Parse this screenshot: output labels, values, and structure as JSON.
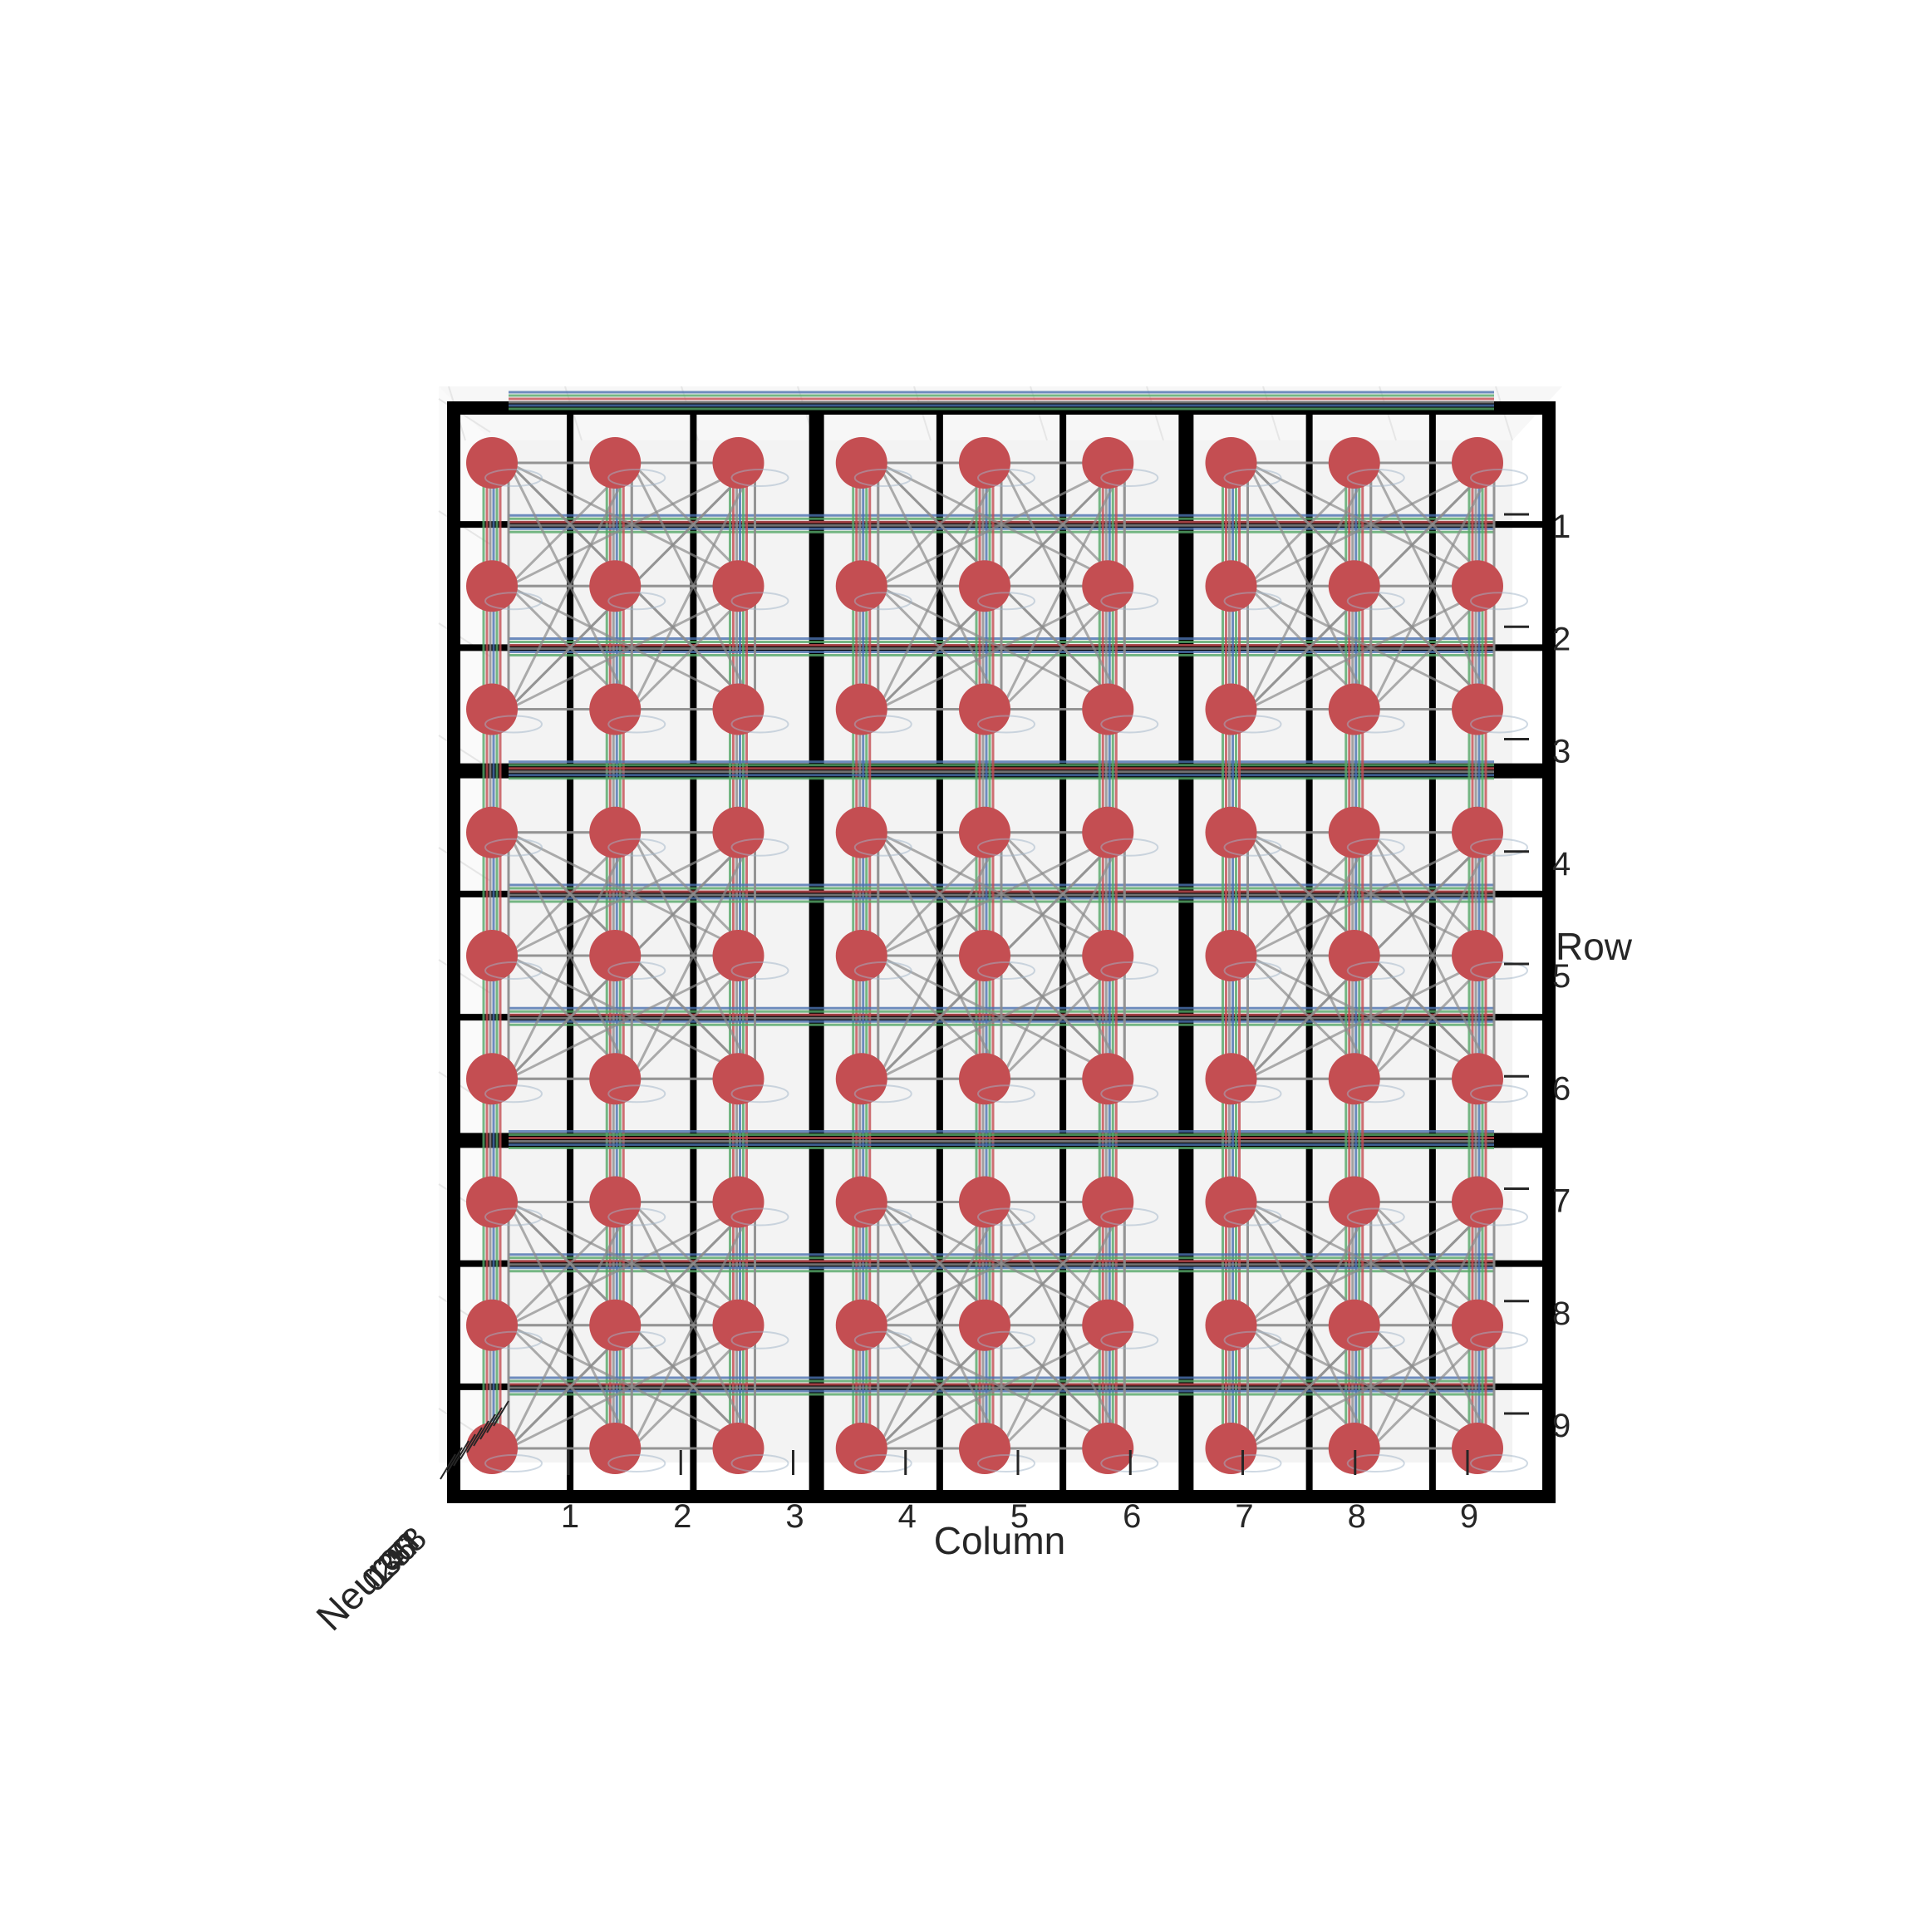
{
  "chart_data": {
    "type": "scatter",
    "projection": "3d",
    "view": "top-down",
    "columns": [
      1,
      2,
      3,
      4,
      5,
      6,
      7,
      8,
      9
    ],
    "rows": [
      1,
      2,
      3,
      4,
      5,
      6,
      7,
      8,
      9
    ],
    "x_ticks": [
      "1",
      "2",
      "3",
      "4",
      "5",
      "6",
      "7",
      "8",
      "9"
    ],
    "y_ticks": [
      "1",
      "2",
      "3",
      "4",
      "5",
      "6",
      "7",
      "8",
      "9"
    ],
    "z_tick_labels": [
      "0",
      "1",
      "2",
      "3",
      "4",
      "5",
      "6",
      "7",
      "8"
    ],
    "xlabel": "Column",
    "ylabel": "Row",
    "zlabel": "Neuron",
    "grid": true,
    "colors": {
      "node": "#c44e52",
      "pane": "#f5f5f5",
      "edge": "#8c8c8c",
      "blue": "#4c72b0",
      "green": "#55a868",
      "grid_bold": "#000000"
    }
  }
}
